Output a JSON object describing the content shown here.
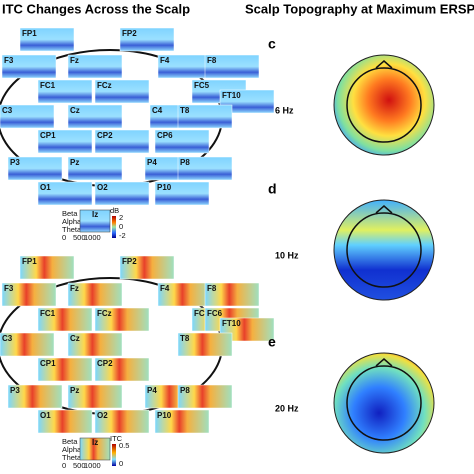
{
  "headings": {
    "left": "ITC Changes Across the Scalp",
    "right": "Scalp Topography at Maximum ERSP V"
  },
  "top_grid": {
    "electrodes": [
      "FP1",
      "FP2",
      "F3",
      "Fz",
      "F4",
      "F8",
      "FC1",
      "FCz",
      "FC5",
      "FT10",
      "C3",
      "Cz",
      "C4",
      "T8",
      "CP1",
      "CP2",
      "CP6",
      "P3",
      "Pz",
      "P4",
      "P8",
      "O1",
      "O2",
      "P10"
    ],
    "legend": {
      "rows": [
        "Beta",
        "Alpha",
        "Theta"
      ],
      "electrode": "Iz",
      "x_ticks": [
        "0",
        "500",
        "1000"
      ],
      "colorbar_title": "dB",
      "colorbar_ticks": [
        "2",
        "0",
        "-2"
      ]
    }
  },
  "bottom_grid": {
    "electrodes": [
      "FP1",
      "FP2",
      "F3",
      "Fz",
      "F4",
      "F8",
      "FC1",
      "FCz",
      "FC5",
      "FC6",
      "FT10",
      "C3",
      "Cz",
      "T8",
      "CP1",
      "CP2",
      "P3",
      "Pz",
      "P4",
      "P8",
      "O1",
      "O2",
      "P10"
    ],
    "legend": {
      "rows": [
        "Beta",
        "Alpha",
        "Theta"
      ],
      "electrode": "Iz",
      "x_ticks": [
        "0",
        "500",
        "1000"
      ],
      "colorbar_title": "ITC",
      "colorbar_ticks": [
        "0.5",
        "0"
      ]
    }
  },
  "topographies": [
    {
      "panel": "c",
      "frequency": "6 Hz"
    },
    {
      "panel": "d",
      "frequency": "10 Hz"
    },
    {
      "panel": "e",
      "frequency": "20 Hz"
    }
  ]
}
